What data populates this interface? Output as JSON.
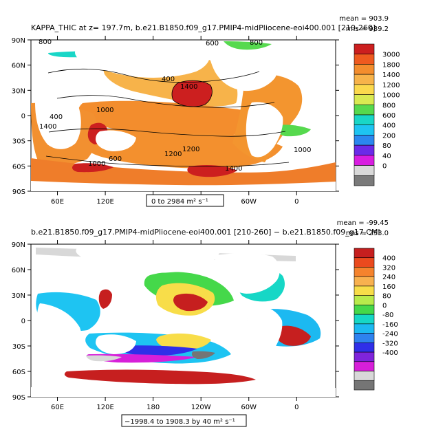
{
  "panels": [
    {
      "title": "KAPPA_THIC at z= 197.7m, b.e21.B1850.f09_g17.PMIP4-midPliocene-eoi400.001 [210-260]",
      "stats": {
        "mean": "mean = 903.9",
        "rms": "rms = 989.2"
      },
      "range_label": "0 to 2984 m² s⁻¹",
      "colorbar": {
        "labels": [
          "3000",
          "1800",
          "1400",
          "1200",
          "1000",
          "800",
          "600",
          "400",
          "200",
          "80",
          "40",
          "0"
        ],
        "colors": [
          "#cc1f1f",
          "#ee5a1f",
          "#f38d2d",
          "#f7b34a",
          "#fbd94d",
          "#d9ea52",
          "#56d94e",
          "#19d6c7",
          "#1ec4f2",
          "#2b87ef",
          "#6b2ae8",
          "#d81de0",
          "#d9d9d9",
          "#7a7a7a"
        ]
      },
      "contour_labels": [
        "800",
        "600",
        "800",
        "400",
        "1400",
        "1000",
        "1400",
        "400",
        "1200",
        "1000",
        "600",
        "1400",
        "1000",
        "1200"
      ]
    },
    {
      "title": "b.e21.B1850.f09_g17.PMIP4-midPliocene-eoi400.001 [210-260] − b.e21.B1850.f09_g17.CMI",
      "stats": {
        "mean": "mean = -99.45",
        "rms": "rms = 253.0"
      },
      "range_label": "−1998.4 to 1908.3 by 40 m² s⁻¹",
      "colorbar": {
        "labels": [
          "400",
          "320",
          "240",
          "160",
          "80",
          "0",
          "-80",
          "-160",
          "-240",
          "-320",
          "-400"
        ],
        "colors": [
          "#c61f1f",
          "#ea4a1e",
          "#f5832d",
          "#f8b14f",
          "#f8dd49",
          "#b8eb4c",
          "#45d84a",
          "#16d7c6",
          "#1cb9f1",
          "#2e82ef",
          "#2f2fe8",
          "#7f24db",
          "#d71fd9",
          "#d8d8d8",
          "#757575"
        ]
      }
    }
  ],
  "axes": {
    "lat_labels": [
      "90N",
      "60N",
      "30N",
      "0",
      "30S",
      "60S",
      "90S"
    ],
    "lon_labels": [
      "60E",
      "120E",
      "180",
      "120W",
      "60W",
      "0"
    ]
  }
}
